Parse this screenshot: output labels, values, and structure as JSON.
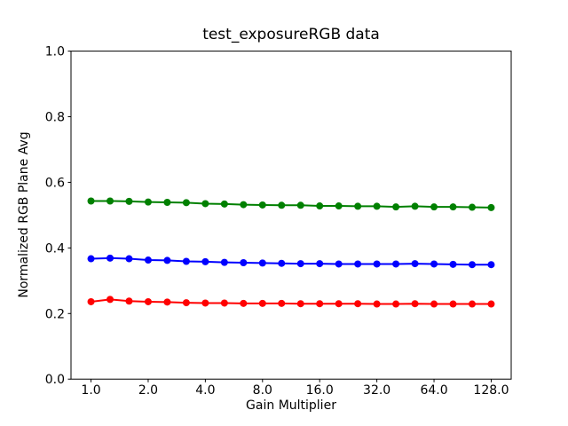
{
  "figure": {
    "background_color": "#ffffff",
    "spine_color": "#000000",
    "text_color": "#000000"
  },
  "chart_data": {
    "type": "line",
    "title": "test_exposureRGB data",
    "xlabel": "Gain Multiplier",
    "ylabel": "Normalized RGB Plane Avg",
    "x_scale": "log2",
    "grid": false,
    "legend": "none",
    "marker": "o",
    "ylim": [
      0.0,
      1.0
    ],
    "x_pad_log2": 0.35,
    "x_tick_values": [
      1.0,
      2.0,
      4.0,
      8.0,
      16.0,
      32.0,
      64.0,
      128.0
    ],
    "x_tick_labels": [
      "1.0",
      "2.0",
      "4.0",
      "8.0",
      "16.0",
      "32.0",
      "64.0",
      "128.0"
    ],
    "y_tick_values": [
      0.0,
      0.2,
      0.4,
      0.6,
      0.8,
      1.0
    ],
    "y_tick_labels": [
      "0.0",
      "0.2",
      "0.4",
      "0.6",
      "0.8",
      "1.0"
    ],
    "x": [
      1.0,
      1.26,
      1.587,
      2.0,
      2.52,
      3.175,
      4.0,
      5.04,
      6.35,
      8.0,
      10.079,
      12.699,
      16.0,
      20.159,
      25.398,
      32.0,
      40.317,
      50.797,
      64.0,
      80.635,
      101.594,
      128.0
    ],
    "series": [
      {
        "name": "green",
        "color": "#008000",
        "values": [
          0.543,
          0.543,
          0.542,
          0.54,
          0.539,
          0.538,
          0.535,
          0.534,
          0.532,
          0.531,
          0.53,
          0.53,
          0.528,
          0.528,
          0.527,
          0.527,
          0.525,
          0.527,
          0.525,
          0.525,
          0.524,
          0.523
        ]
      },
      {
        "name": "blue",
        "color": "#0000ff",
        "values": [
          0.367,
          0.369,
          0.367,
          0.363,
          0.362,
          0.359,
          0.358,
          0.356,
          0.355,
          0.354,
          0.353,
          0.352,
          0.352,
          0.351,
          0.351,
          0.351,
          0.351,
          0.352,
          0.351,
          0.35,
          0.349,
          0.349
        ]
      },
      {
        "name": "red",
        "color": "#ff0000",
        "values": [
          0.236,
          0.243,
          0.238,
          0.236,
          0.235,
          0.233,
          0.232,
          0.232,
          0.231,
          0.231,
          0.231,
          0.23,
          0.23,
          0.23,
          0.23,
          0.229,
          0.229,
          0.23,
          0.229,
          0.229,
          0.229,
          0.229
        ]
      }
    ]
  }
}
